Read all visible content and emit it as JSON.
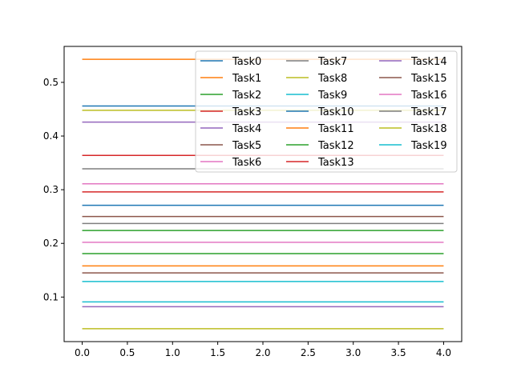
{
  "chart_data": {
    "type": "line",
    "title": "",
    "xlabel": "",
    "ylabel": "",
    "x": [
      0,
      1,
      2,
      3,
      4
    ],
    "xlim": [
      -0.2,
      4.2
    ],
    "ylim": [
      0.017,
      0.567
    ],
    "xticks": [
      0,
      0.5,
      1,
      1.5,
      2,
      2.5,
      3,
      3.5,
      4
    ],
    "xtick_labels": [
      "0.0",
      "0.5",
      "1.0",
      "1.5",
      "2.0",
      "2.5",
      "3.0",
      "3.5",
      "4.0"
    ],
    "yticks": [
      0.1,
      0.2,
      0.3,
      0.4,
      0.5
    ],
    "ytick_labels": [
      "0.1",
      "0.2",
      "0.3",
      "0.4",
      "0.5"
    ],
    "grid": false,
    "legend_position": "top-right",
    "legend_columns": 3,
    "series": [
      {
        "name": "Task0",
        "color": "#1f77b4",
        "values": [
          0.456,
          0.456,
          0.456,
          0.456,
          0.456
        ]
      },
      {
        "name": "Task1",
        "color": "#ff7f0e",
        "values": [
          0.543,
          0.543,
          0.543,
          0.543,
          0.543
        ]
      },
      {
        "name": "Task2",
        "color": "#2ca02c",
        "values": [
          0.181,
          0.181,
          0.181,
          0.181,
          0.181
        ]
      },
      {
        "name": "Task3",
        "color": "#d62728",
        "values": [
          0.296,
          0.296,
          0.296,
          0.296,
          0.296
        ]
      },
      {
        "name": "Task4",
        "color": "#9467bd",
        "values": [
          0.426,
          0.426,
          0.426,
          0.426,
          0.426
        ]
      },
      {
        "name": "Task5",
        "color": "#8c564b",
        "values": [
          0.25,
          0.25,
          0.25,
          0.25,
          0.25
        ]
      },
      {
        "name": "Task6",
        "color": "#e377c2",
        "values": [
          0.202,
          0.202,
          0.202,
          0.202,
          0.202
        ]
      },
      {
        "name": "Task7",
        "color": "#7f7f7f",
        "values": [
          0.339,
          0.339,
          0.339,
          0.339,
          0.339
        ]
      },
      {
        "name": "Task8",
        "color": "#bcbd22",
        "values": [
          0.448,
          0.448,
          0.448,
          0.448,
          0.448
        ]
      },
      {
        "name": "Task9",
        "color": "#17becf",
        "values": [
          0.091,
          0.091,
          0.091,
          0.091,
          0.091
        ]
      },
      {
        "name": "Task10",
        "color": "#1f77b4",
        "values": [
          0.271,
          0.271,
          0.271,
          0.271,
          0.271
        ]
      },
      {
        "name": "Task11",
        "color": "#ff7f0e",
        "values": [
          0.158,
          0.158,
          0.158,
          0.158,
          0.158
        ]
      },
      {
        "name": "Task12",
        "color": "#2ca02c",
        "values": [
          0.224,
          0.224,
          0.224,
          0.224,
          0.224
        ]
      },
      {
        "name": "Task13",
        "color": "#d62728",
        "values": [
          0.364,
          0.364,
          0.364,
          0.364,
          0.364
        ]
      },
      {
        "name": "Task14",
        "color": "#9467bd",
        "values": [
          0.082,
          0.082,
          0.082,
          0.082,
          0.082
        ]
      },
      {
        "name": "Task15",
        "color": "#8c564b",
        "values": [
          0.145,
          0.145,
          0.145,
          0.145,
          0.145
        ]
      },
      {
        "name": "Task16",
        "color": "#e377c2",
        "values": [
          0.311,
          0.311,
          0.311,
          0.311,
          0.311
        ]
      },
      {
        "name": "Task17",
        "color": "#7f7f7f",
        "values": [
          0.237,
          0.237,
          0.237,
          0.237,
          0.237
        ]
      },
      {
        "name": "Task18",
        "color": "#bcbd22",
        "values": [
          0.041,
          0.041,
          0.041,
          0.041,
          0.041
        ]
      },
      {
        "name": "Task19",
        "color": "#17becf",
        "values": [
          0.129,
          0.129,
          0.129,
          0.129,
          0.129
        ]
      }
    ]
  }
}
